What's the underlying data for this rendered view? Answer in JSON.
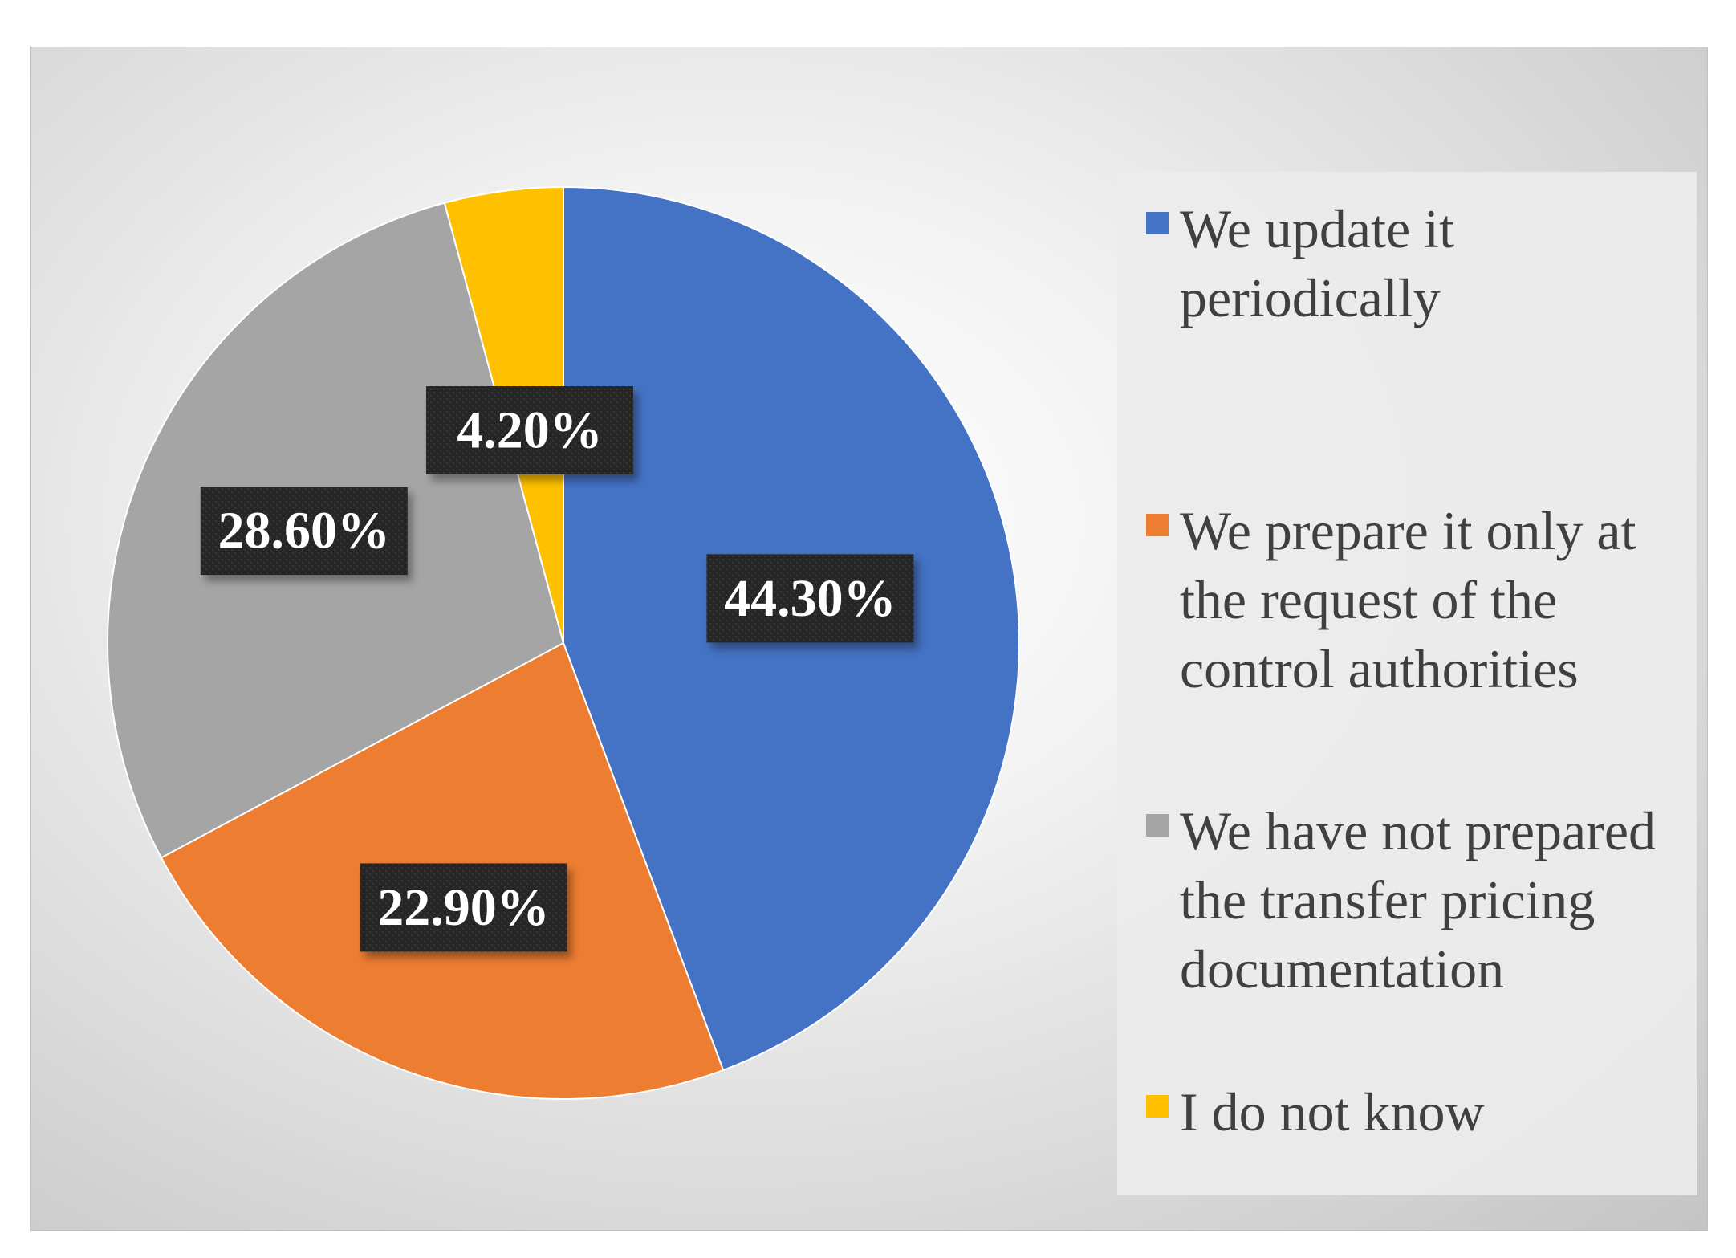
{
  "chart_data": {
    "type": "pie",
    "categories": [
      "We update it periodically",
      "We prepare it only at the request of the control authorities",
      "We have not prepared the transfer pricing documentation",
      "I do not know"
    ],
    "values": [
      44.3,
      22.9,
      28.6,
      4.2
    ],
    "data_labels": [
      "44.30%",
      "22.90%",
      "28.60%",
      "4.20%"
    ],
    "colors": [
      "#4472c4",
      "#ed7d31",
      "#a5a5a5",
      "#ffc000"
    ],
    "legend_placement": "right",
    "label_box_color": "#262626"
  },
  "legend": {
    "items": [
      {
        "label": "We update it periodically",
        "color": "#4472c4"
      },
      {
        "label": "We prepare it only at the request of the control authorities",
        "color": "#ed7d31"
      },
      {
        "label": "We have not prepared the transfer pricing documentation",
        "color": "#a5a5a5"
      },
      {
        "label": "I do not know",
        "color": "#ffc000"
      }
    ]
  }
}
